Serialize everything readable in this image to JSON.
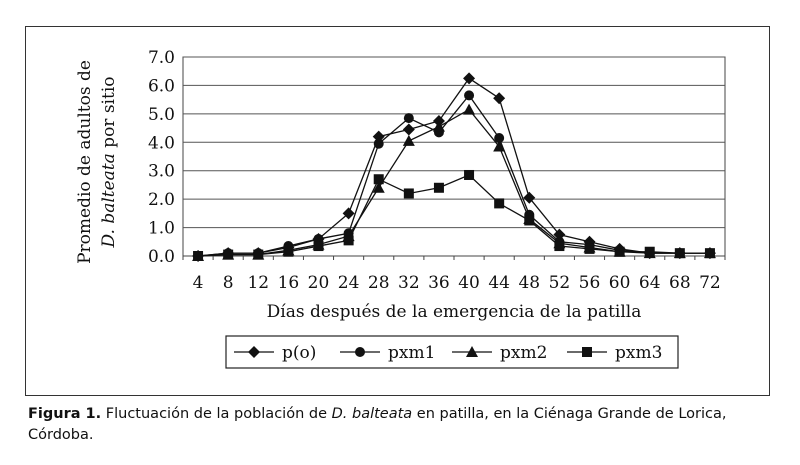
{
  "chart_data": {
    "type": "line",
    "xlabel": "Días después de la emergencia de la patilla",
    "ylabel_line1": "Promedio de adultos de",
    "ylabel_line2_italic": "D. balteata",
    "ylabel_line2_rest": " por sitio",
    "x": [
      4,
      8,
      12,
      16,
      20,
      24,
      28,
      32,
      36,
      40,
      44,
      48,
      52,
      56,
      60,
      64,
      68,
      72
    ],
    "ylim": [
      0,
      7
    ],
    "yticks": [
      "0.0",
      "1.0",
      "2.0",
      "3.0",
      "4.0",
      "5.0",
      "6.0",
      "7.0"
    ],
    "grid": true,
    "legend_position": "bottom",
    "series": [
      {
        "name": "p(o)",
        "marker": "diamond",
        "values": [
          0.0,
          0.1,
          0.1,
          0.3,
          0.6,
          1.5,
          4.2,
          4.45,
          4.75,
          6.25,
          5.55,
          2.05,
          0.75,
          0.5,
          0.25,
          0.1,
          0.1,
          0.1
        ]
      },
      {
        "name": "pxm1",
        "marker": "circle",
        "values": [
          0.0,
          0.1,
          0.1,
          0.35,
          0.6,
          0.8,
          3.95,
          4.85,
          4.35,
          5.65,
          4.15,
          1.45,
          0.5,
          0.4,
          0.2,
          0.1,
          0.1,
          0.1
        ]
      },
      {
        "name": "pxm2",
        "marker": "triangle",
        "values": [
          0.0,
          0.05,
          0.05,
          0.2,
          0.4,
          0.7,
          2.4,
          4.05,
          4.55,
          5.15,
          3.85,
          1.3,
          0.45,
          0.3,
          0.15,
          0.1,
          0.1,
          0.1
        ]
      },
      {
        "name": "pxm3",
        "marker": "square",
        "values": [
          0.0,
          0.05,
          0.05,
          0.15,
          0.35,
          0.55,
          2.7,
          2.2,
          2.4,
          2.85,
          1.85,
          1.25,
          0.35,
          0.25,
          0.15,
          0.15,
          0.1,
          0.1
        ]
      }
    ]
  },
  "caption": {
    "lead": "Figura 1.",
    "text_before": " Fluctuación de la población de ",
    "species": "D. balteata",
    "text_after": " en patilla, en la Ciénaga Grande de Lorica, Córdoba."
  }
}
